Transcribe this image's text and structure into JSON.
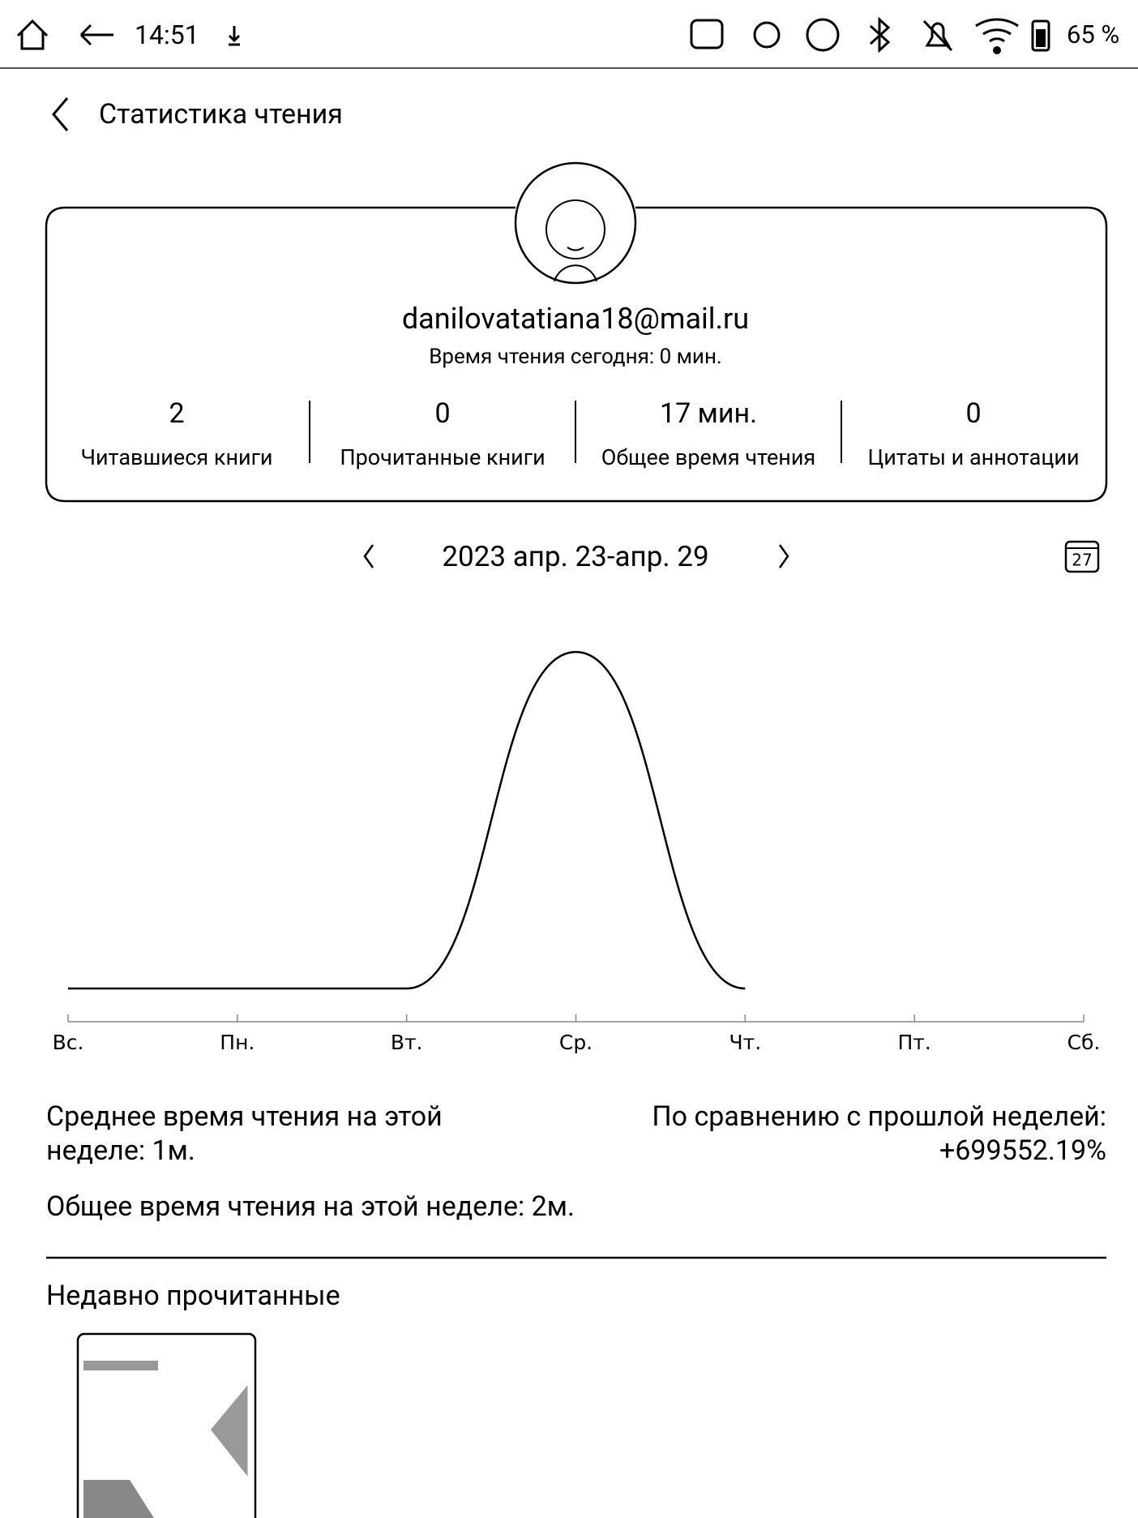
{
  "status_bar": {
    "time": "14:51",
    "battery": "65 %"
  },
  "header": {
    "title": "Статистика чтения"
  },
  "profile": {
    "email": "danilovatatiana18@mail.ru",
    "today": "Время чтения сегодня: 0 мин.",
    "stats": [
      {
        "value": 2,
        "label": "Читавшиеся книги"
      },
      {
        "value": 0,
        "label": "Прочитанные книги"
      },
      {
        "value": "17 мин.",
        "label": "Общее время чтения"
      },
      {
        "value": 0,
        "label": "Цитаты и аннотации"
      }
    ]
  },
  "week": {
    "range": "2023 апр. 23-апр. 29",
    "calendar_day": "27"
  },
  "chart_data": {
    "type": "line",
    "categories": [
      "Вс.",
      "Пн.",
      "Вт.",
      "Ср.",
      "Чт.",
      "Пт.",
      "Сб."
    ],
    "values": [
      0,
      0,
      0,
      2,
      0,
      null,
      null
    ],
    "ylim": [
      0,
      2
    ],
    "color": "#000000"
  },
  "summary": {
    "average": "Среднее время чтения на этой неделе: 1м.",
    "comparison_label": "По сравнению с прошлой неделей:",
    "comparison_value": "+699552.19%",
    "total": "Общее время чтения на этой неделе: 2м."
  },
  "recent": {
    "title": "Недавно прочитанные"
  }
}
